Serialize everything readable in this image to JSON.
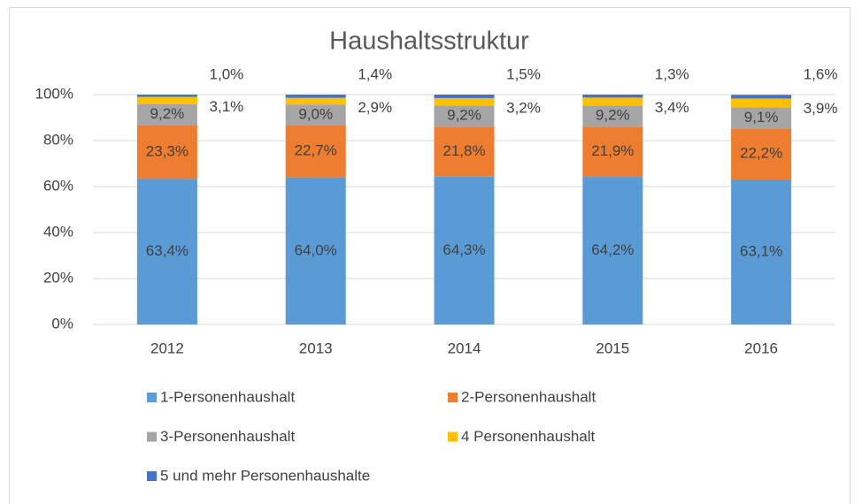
{
  "chart_data": {
    "type": "stacked_bar",
    "title": "Haushaltsstruktur",
    "categories": [
      "2012",
      "2013",
      "2014",
      "2015",
      "2016"
    ],
    "series": [
      {
        "name": "1-Personenhaushalt",
        "color": "#5b9bd5",
        "values": [
          63.4,
          64.0,
          64.3,
          64.2,
          63.1
        ],
        "value_labels": [
          "63,4%",
          "64,0%",
          "64,3%",
          "64,2%",
          "63,1%"
        ]
      },
      {
        "name": "2-Personenhaushalt",
        "color": "#ed7d31",
        "values": [
          23.3,
          22.7,
          21.8,
          21.9,
          22.2
        ],
        "value_labels": [
          "23,3%",
          "22,7%",
          "21,8%",
          "21,9%",
          "22,2%"
        ]
      },
      {
        "name": "3-Personenhaushalt",
        "color": "#a5a5a5",
        "values": [
          9.2,
          9.0,
          9.2,
          9.2,
          9.1
        ],
        "value_labels": [
          "9,2%",
          "9,0%",
          "9,2%",
          "9,2%",
          "9,1%"
        ]
      },
      {
        "name": "4 Personenhaushalt",
        "color": "#ffc000",
        "values": [
          3.1,
          2.9,
          3.2,
          3.4,
          3.9
        ],
        "value_labels": [
          "3,1%",
          "2,9%",
          "3,2%",
          "3,4%",
          "3,9%"
        ]
      },
      {
        "name": "5 und mehr Personenhaushalte",
        "color": "#4472c4",
        "values": [
          1.0,
          1.4,
          1.5,
          1.3,
          1.6
        ],
        "value_labels": [
          "1,0%",
          "1,4%",
          "1,5%",
          "1,3%",
          "1,6%"
        ]
      }
    ],
    "ylim": [
      0,
      100
    ],
    "yticks": [
      {
        "value": 0,
        "label": "0%"
      },
      {
        "value": 20,
        "label": "20%"
      },
      {
        "value": 40,
        "label": "40%"
      },
      {
        "value": 60,
        "label": "60%"
      },
      {
        "value": 80,
        "label": "80%"
      },
      {
        "value": 100,
        "label": "100%"
      }
    ],
    "grid": true,
    "legend": "bottom"
  }
}
